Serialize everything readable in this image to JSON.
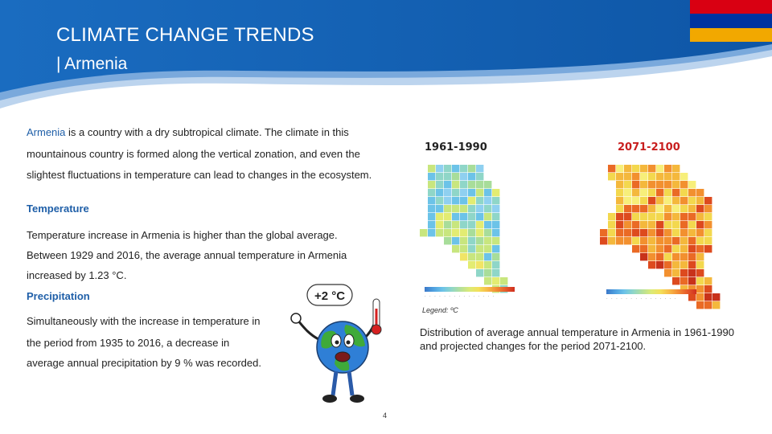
{
  "header": {
    "title": "CLIMATE CHANGE TRENDS",
    "subtitle": "| Armenia"
  },
  "flag": {
    "colors": [
      "#d90012",
      "#0033a0",
      "#f2a800"
    ]
  },
  "intro": {
    "highlight": "Armenia",
    "line1_rest": " is a country with a dry subtropical climate. The climate in this",
    "line2": "mountainous country is formed along the vertical zonation, and even the",
    "line3": "slightest fluctuations in temperature can lead to changes in the ecosystem."
  },
  "temperature": {
    "heading": "Temperature",
    "line1": "Temperature increase in Armenia is higher than the global average.",
    "line2": "Between 1929 and 2016, the average annual temperature in Armenia",
    "line3": "increased by 1.23 °C."
  },
  "precipitation": {
    "heading": "Precipitation",
    "line1": "Simultaneously with the increase in temperature in",
    "line2": "the period from 1935 to 2016, a decrease in",
    "line3": "average annual precipitation by 9 % was recorded."
  },
  "maps": {
    "period_left": "1961-1990",
    "period_right": "2071-2100",
    "legend": "Legend: ºC",
    "caption": "Distribution of average annual temperature in Armenia in 1961-1990 and projected changes for the period 2071-2100."
  },
  "cartoon": {
    "badge": "+2 °C",
    "icon": "globe-thermometer-icon"
  },
  "page_number": "4",
  "colors": {
    "header_blue": "#1565b5",
    "accent_blue": "#1f5fa8",
    "period_right": "#c81e1e"
  }
}
